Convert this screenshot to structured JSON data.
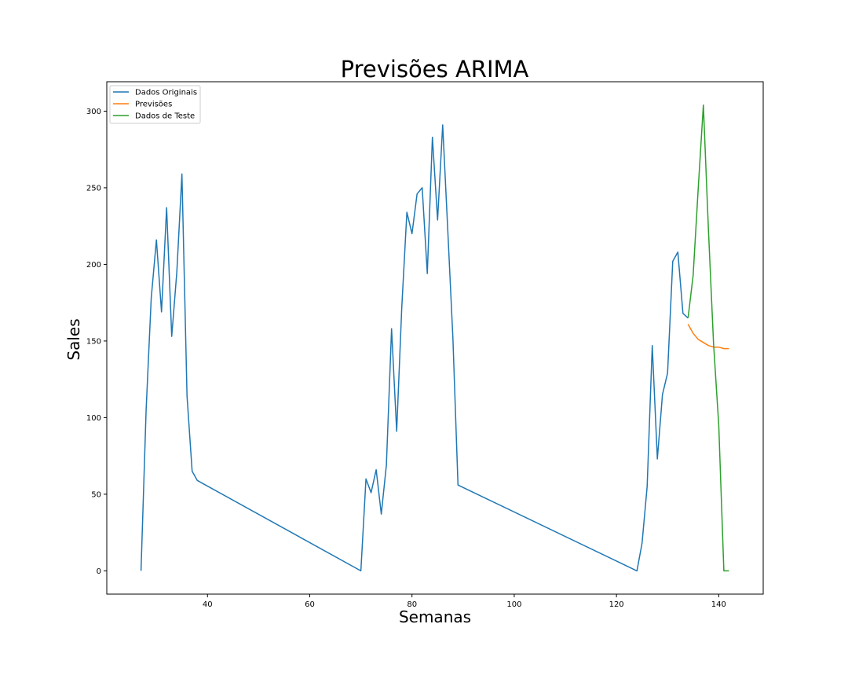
{
  "chart_data": {
    "type": "line",
    "title": "Previsões ARIMA",
    "xlabel": "Semanas",
    "ylabel": "Sales",
    "xlim": [
      20.3,
      148.7
    ],
    "ylim": [
      -15.2,
      319.2
    ],
    "xticks": [
      40,
      60,
      80,
      100,
      120,
      140
    ],
    "yticks": [
      0,
      50,
      100,
      150,
      200,
      250,
      300
    ],
    "grid": false,
    "legend_position": "top-left",
    "series": [
      {
        "name": "Dados Originais",
        "color": "#1f77b4",
        "x": [
          27,
          28,
          29,
          30,
          31,
          32,
          33,
          34,
          35,
          36,
          37,
          38,
          70,
          71,
          72,
          73,
          74,
          75,
          76,
          77,
          78,
          79,
          80,
          81,
          82,
          83,
          84,
          85,
          86,
          87,
          88,
          89,
          124,
          125,
          126,
          127,
          128,
          129,
          130,
          131,
          132,
          133,
          134
        ],
        "y": [
          0,
          105,
          178,
          216,
          169,
          237,
          153,
          195,
          259,
          114,
          65,
          59,
          0,
          60,
          51,
          66,
          37,
          69,
          158,
          91,
          172,
          234,
          220,
          246,
          250,
          194,
          283,
          229,
          291,
          222,
          152,
          56,
          0,
          18,
          55,
          147,
          73,
          115,
          129,
          202,
          208,
          168,
          165
        ]
      },
      {
        "name": "Previsões",
        "color": "#ff7f0e",
        "x": [
          134,
          135,
          136,
          137,
          138,
          139,
          140,
          141,
          142
        ],
        "y": [
          161,
          155,
          151,
          149,
          147,
          146,
          146,
          145,
          145
        ]
      },
      {
        "name": "Dados de Teste",
        "color": "#2ca02c",
        "x": [
          134,
          135,
          136,
          137,
          138,
          139,
          140,
          141,
          142
        ],
        "y": [
          165,
          193,
          250,
          304,
          222,
          148,
          95,
          0,
          0
        ]
      }
    ]
  }
}
